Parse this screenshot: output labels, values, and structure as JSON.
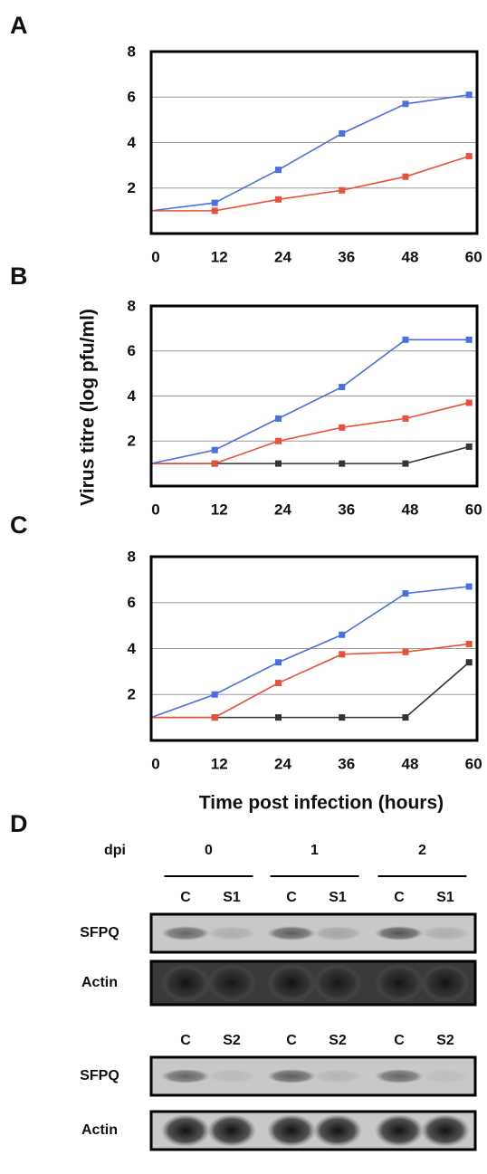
{
  "y_label": "Virus titre (log pfu/ml)",
  "x_label": "Time post infection (hours)",
  "chart_data": [
    {
      "type": "line",
      "panel": "A",
      "x": [
        0,
        12,
        24,
        36,
        48,
        60
      ],
      "xlim": [
        0,
        61.5
      ],
      "xticks": [
        0,
        12,
        24,
        36,
        48,
        60
      ],
      "ylim": [
        0,
        8
      ],
      "yticks": [
        2,
        4,
        6,
        8
      ],
      "grid": true,
      "series": [
        {
          "color": "#4a6fe3",
          "values": [
            1,
            1.35,
            2.8,
            4.4,
            5.7,
            6.1
          ]
        },
        {
          "color": "#e8503a",
          "values": [
            1,
            1,
            1.5,
            1.9,
            2.5,
            3.4
          ]
        }
      ]
    },
    {
      "type": "line",
      "panel": "B",
      "x": [
        0,
        12,
        24,
        36,
        48,
        60
      ],
      "xlim": [
        0,
        61.5
      ],
      "xticks": [
        0,
        12,
        24,
        36,
        48,
        60
      ],
      "ylim": [
        0,
        8
      ],
      "yticks": [
        2,
        4,
        6,
        8
      ],
      "grid": true,
      "series": [
        {
          "color": "#333333",
          "values": [
            1,
            1,
            1,
            1,
            1,
            1.75
          ]
        },
        {
          "color": "#4a6fe3",
          "values": [
            1,
            1.6,
            3,
            4.4,
            6.5,
            6.5
          ]
        },
        {
          "color": "#e8503a",
          "values": [
            1,
            1,
            2,
            2.6,
            3,
            3.7
          ]
        }
      ]
    },
    {
      "type": "line",
      "panel": "C",
      "x": [
        0,
        12,
        24,
        36,
        48,
        60
      ],
      "xlim": [
        0,
        61.5
      ],
      "xticks": [
        0,
        12,
        24,
        36,
        48,
        60
      ],
      "ylim": [
        0,
        8
      ],
      "yticks": [
        2,
        4,
        6,
        8
      ],
      "grid": true,
      "series": [
        {
          "color": "#333333",
          "values": [
            1,
            1,
            1,
            1,
            1,
            3.4
          ]
        },
        {
          "color": "#4a6fe3",
          "values": [
            1,
            2,
            3.4,
            4.6,
            6.4,
            6.7
          ]
        },
        {
          "color": "#e8503a",
          "values": [
            1,
            1,
            2.5,
            3.75,
            3.85,
            4.2
          ]
        }
      ]
    }
  ],
  "blot": {
    "panel": "D",
    "dpi_label": "dpi",
    "days": [
      "0",
      "1",
      "2"
    ],
    "sets": [
      {
        "lanes": [
          "C",
          "S1",
          "C",
          "S1",
          "C",
          "S1"
        ],
        "rows": [
          "SFPQ",
          "Actin"
        ]
      },
      {
        "lanes": [
          "C",
          "S2",
          "C",
          "S2",
          "C",
          "S2"
        ],
        "rows": [
          "SFPQ",
          "Actin"
        ]
      }
    ]
  }
}
